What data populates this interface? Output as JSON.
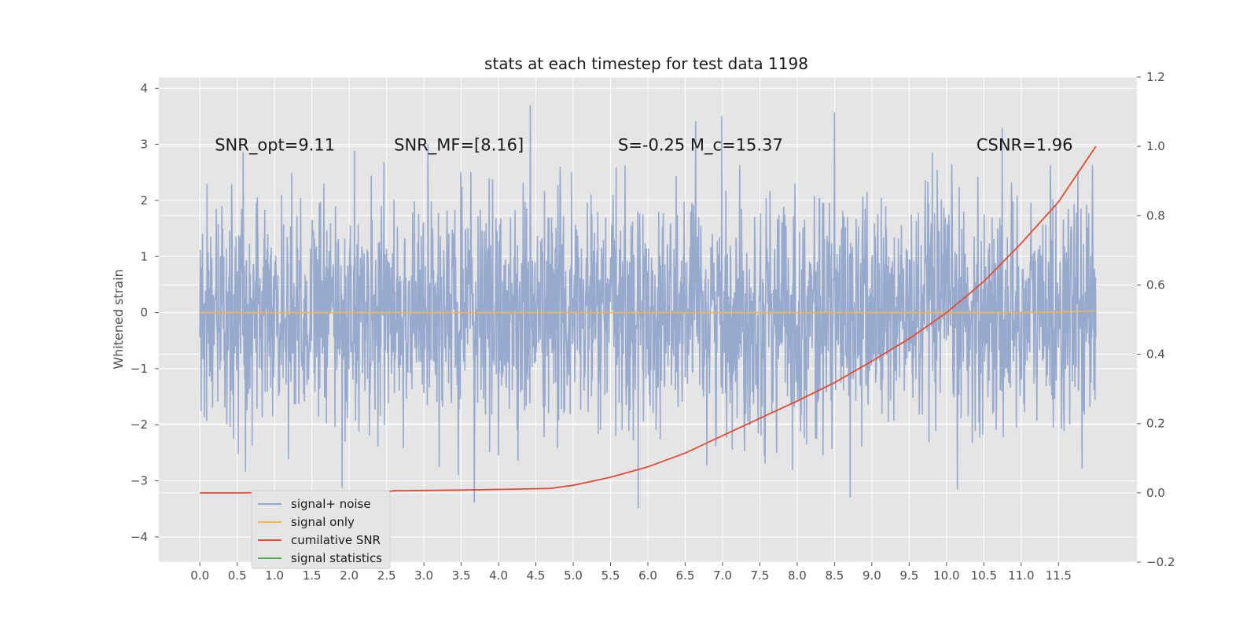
{
  "chart_data": {
    "type": "line",
    "title": "stats at each timestep for test data 1198",
    "ylabel": "Whitened strain",
    "xlabel": "",
    "xlim": [
      -0.55,
      12.55
    ],
    "ylim": [
      -4.45,
      4.2
    ],
    "y2lim": [
      -0.2,
      1.2
    ],
    "x_ticks": [
      "0.0",
      "0.5",
      "1.0",
      "1.5",
      "2.0",
      "2.5",
      "3.0",
      "3.5",
      "4.0",
      "4.5",
      "5.0",
      "5.5",
      "6.0",
      "6.5",
      "7.0",
      "7.5",
      "8.0",
      "8.5",
      "9.0",
      "9.5",
      "10.0",
      "10.5",
      "11.0",
      "11.5"
    ],
    "y_ticks": [
      "4",
      "3",
      "2",
      "1",
      "0",
      "−1",
      "−2",
      "−3",
      "−4"
    ],
    "y2_ticks": [
      "1.2",
      "1.0",
      "0.8",
      "0.6",
      "0.4",
      "0.2",
      "0.0",
      "−0.2"
    ],
    "grid": true,
    "legend_position": "lower-left",
    "annotations": [
      {
        "x": 0.2,
        "y": 3.0,
        "text": "SNR_opt=9.11"
      },
      {
        "x": 2.6,
        "y": 3.0,
        "text": "SNR_MF=[8.16]"
      },
      {
        "x": 5.6,
        "y": 3.0,
        "text": "S=-0.25  M_c=15.37"
      },
      {
        "x": 10.4,
        "y": 3.0,
        "text": "CSNR=1.96"
      }
    ],
    "series": [
      {
        "name": "signal+ noise",
        "color": "#92a6cc",
        "axis": "left",
        "description": "whitened noise, x 0.0–12.0, typical range −2.5 to 2.5, extremes 3.85 / −4.1",
        "band_typical": [
          -1.6,
          1.75
        ],
        "peak_max": 3.85,
        "peak_min": -4.1
      },
      {
        "name": "signal only",
        "color": "#f2b54d",
        "axis": "left",
        "x": [
          0.0,
          6.0,
          11.0,
          11.5,
          12.0
        ],
        "y": [
          0.0,
          0.0,
          0.0,
          0.01,
          0.03
        ]
      },
      {
        "name": "cumilative SNR",
        "color": "#e24a33",
        "axis": "right",
        "x": [
          0.0,
          0.5,
          1.0,
          1.5,
          2.0,
          2.5,
          2.6,
          3.0,
          3.5,
          4.0,
          4.5,
          4.7,
          5.0,
          5.5,
          6.0,
          6.5,
          7.0,
          7.5,
          8.0,
          8.5,
          9.0,
          9.5,
          10.0,
          10.5,
          11.0,
          11.5,
          12.0
        ],
        "y": [
          0.0,
          0.0,
          0.001,
          0.001,
          0.002,
          0.003,
          0.006,
          0.007,
          0.008,
          0.01,
          0.012,
          0.013,
          0.022,
          0.045,
          0.075,
          0.115,
          0.165,
          0.215,
          0.265,
          0.318,
          0.38,
          0.445,
          0.52,
          0.61,
          0.72,
          0.84,
          1.0
        ]
      },
      {
        "name": "signal statistics",
        "color": "#4daf4a",
        "axis": "left",
        "x": [],
        "y": []
      }
    ],
    "legend": [
      {
        "label": "signal+ noise",
        "color": "#92a6cc"
      },
      {
        "label": "signal only",
        "color": "#f2b54d"
      },
      {
        "label": "cumilative SNR",
        "color": "#e24a33"
      },
      {
        "label": "signal statistics",
        "color": "#4daf4a"
      }
    ]
  }
}
